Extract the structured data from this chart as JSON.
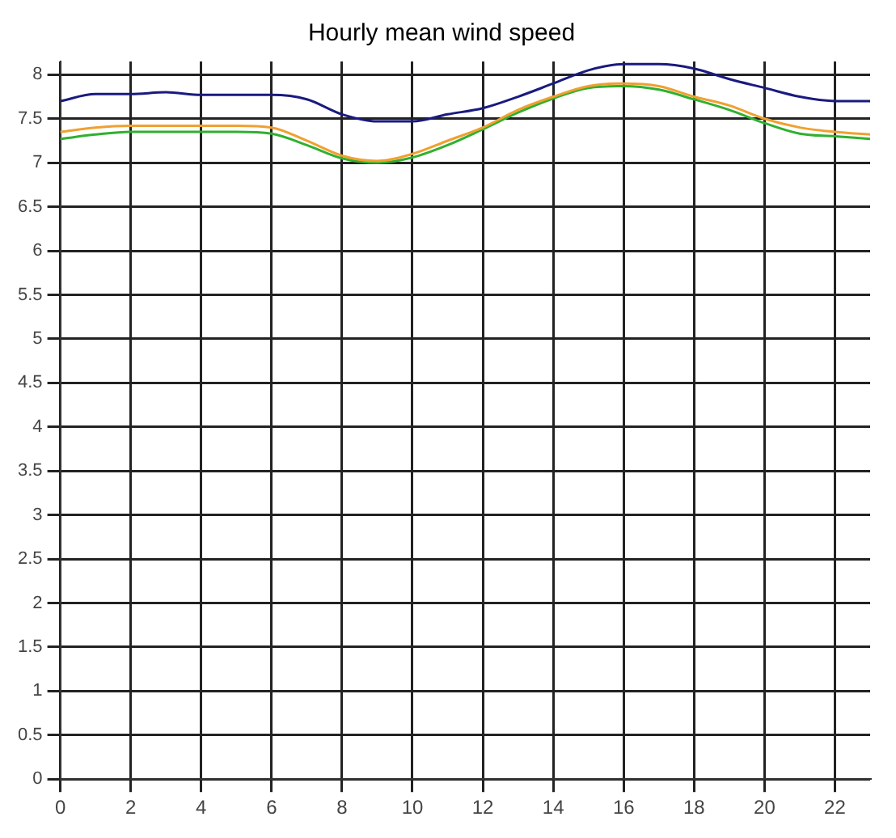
{
  "chart_data": {
    "type": "line",
    "title": "Hourly mean wind speed",
    "x": [
      0,
      1,
      2,
      3,
      4,
      5,
      6,
      7,
      8,
      9,
      10,
      11,
      12,
      13,
      14,
      15,
      16,
      17,
      18,
      19,
      20,
      21,
      22,
      23
    ],
    "series": [
      {
        "color": "#1a1a80",
        "values": [
          7.7,
          7.78,
          7.78,
          7.8,
          7.77,
          7.77,
          7.77,
          7.72,
          7.55,
          7.47,
          7.47,
          7.55,
          7.62,
          7.75,
          7.9,
          8.05,
          8.12,
          8.12,
          8.07,
          7.95,
          7.85,
          7.75,
          7.7,
          7.7
        ]
      },
      {
        "color": "#f0a030",
        "values": [
          7.35,
          7.4,
          7.42,
          7.42,
          7.42,
          7.42,
          7.4,
          7.25,
          7.08,
          7.02,
          7.1,
          7.25,
          7.4,
          7.6,
          7.75,
          7.87,
          7.9,
          7.87,
          7.75,
          7.65,
          7.5,
          7.4,
          7.35,
          7.32
        ]
      },
      {
        "color": "#30b030",
        "values": [
          7.27,
          7.32,
          7.35,
          7.35,
          7.35,
          7.35,
          7.33,
          7.2,
          7.05,
          7.0,
          7.06,
          7.2,
          7.38,
          7.57,
          7.73,
          7.85,
          7.87,
          7.83,
          7.72,
          7.6,
          7.45,
          7.33,
          7.3,
          7.27
        ]
      }
    ],
    "xlim": [
      0,
      23
    ],
    "xticks": [
      0,
      2,
      4,
      6,
      8,
      10,
      12,
      14,
      16,
      18,
      20,
      22
    ],
    "ylim": [
      0,
      8.15
    ],
    "yticks": [
      0,
      0.5,
      1,
      1.5,
      2,
      2.5,
      3,
      3.5,
      4,
      4.5,
      5,
      5.5,
      6,
      6.5,
      7,
      7.5,
      8
    ],
    "grid": true,
    "legend": false,
    "marker": "none",
    "line_style": "solid"
  }
}
